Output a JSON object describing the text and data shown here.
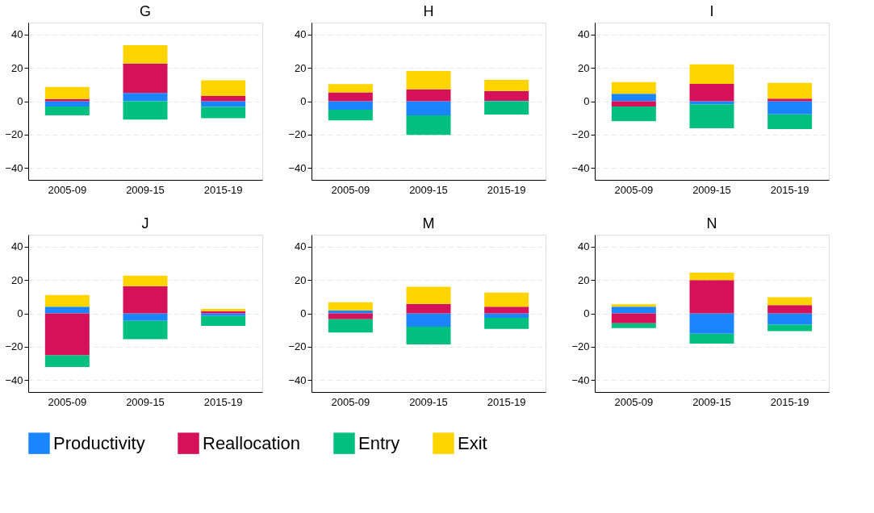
{
  "chart_data": [
    {
      "type": "bar",
      "title": "G",
      "categories": [
        "2005-09",
        "2009-15",
        "2015-19"
      ],
      "stacked": true,
      "ylim": [
        -47,
        47
      ],
      "yticks": [
        -40,
        -20,
        0,
        20,
        40
      ],
      "grid": "y",
      "legend": "bottom",
      "series": [
        {
          "name": "Productivity",
          "color": "#1a85ff",
          "values": [
            -3.1,
            4.9,
            -3.4
          ]
        },
        {
          "name": "Reallocation",
          "color": "#d41159",
          "values": [
            1.3,
            17.6,
            3.1
          ]
        },
        {
          "name": "Entry",
          "color": "#00bf7f",
          "values": [
            -5.3,
            -11.0,
            -6.7
          ]
        },
        {
          "name": "Exit",
          "color": "#ffd400",
          "values": [
            7.2,
            11.0,
            9.4
          ]
        }
      ]
    },
    {
      "type": "bar",
      "title": "H",
      "categories": [
        "2005-09",
        "2009-15",
        "2015-19"
      ],
      "stacked": true,
      "ylim": [
        -47,
        47
      ],
      "yticks": [
        -40,
        -20,
        0,
        20,
        40
      ],
      "grid": "y",
      "legend": "bottom",
      "series": [
        {
          "name": "Productivity",
          "color": "#1a85ff",
          "values": [
            -5.1,
            -8.4,
            0.3
          ]
        },
        {
          "name": "Reallocation",
          "color": "#d41159",
          "values": [
            5.3,
            7.1,
            5.9
          ]
        },
        {
          "name": "Entry",
          "color": "#00bf7f",
          "values": [
            -6.4,
            -11.7,
            -7.9
          ]
        },
        {
          "name": "Exit",
          "color": "#ffd400",
          "values": [
            5.0,
            11.0,
            6.6
          ]
        }
      ]
    },
    {
      "type": "bar",
      "title": "I",
      "categories": [
        "2005-09",
        "2009-15",
        "2015-19"
      ],
      "stacked": true,
      "ylim": [
        -47,
        47
      ],
      "yticks": [
        -40,
        -20,
        0,
        20,
        40
      ],
      "grid": "y",
      "legend": "bottom",
      "series": [
        {
          "name": "Productivity",
          "color": "#1a85ff",
          "values": [
            4.4,
            -1.8,
            -7.8
          ]
        },
        {
          "name": "Reallocation",
          "color": "#d41159",
          "values": [
            -3.1,
            10.4,
            1.6
          ]
        },
        {
          "name": "Entry",
          "color": "#00bf7f",
          "values": [
            -8.8,
            -14.4,
            -8.8
          ]
        },
        {
          "name": "Exit",
          "color": "#ffd400",
          "values": [
            7.1,
            11.7,
            9.4
          ]
        }
      ]
    },
    {
      "type": "bar",
      "title": "J",
      "categories": [
        "2005-09",
        "2009-15",
        "2015-19"
      ],
      "stacked": true,
      "ylim": [
        -47,
        47
      ],
      "yticks": [
        -40,
        -20,
        0,
        20,
        40
      ],
      "grid": "y",
      "legend": "bottom",
      "series": [
        {
          "name": "Productivity",
          "color": "#1a85ff",
          "values": [
            4.0,
            -4.4,
            -1.6
          ]
        },
        {
          "name": "Reallocation",
          "color": "#d41159",
          "values": [
            -25.1,
            16.3,
            1.3
          ]
        },
        {
          "name": "Entry",
          "color": "#00bf7f",
          "values": [
            -7.0,
            -11.0,
            -5.9
          ]
        },
        {
          "name": "Exit",
          "color": "#ffd400",
          "values": [
            7.0,
            6.2,
            1.3
          ]
        }
      ]
    },
    {
      "type": "bar",
      "title": "M",
      "categories": [
        "2005-09",
        "2009-15",
        "2015-19"
      ],
      "stacked": true,
      "ylim": [
        -47,
        47
      ],
      "yticks": [
        -40,
        -20,
        0,
        20,
        40
      ],
      "grid": "y",
      "legend": "bottom",
      "series": [
        {
          "name": "Productivity",
          "color": "#1a85ff",
          "values": [
            1.8,
            -7.9,
            -2.6
          ]
        },
        {
          "name": "Reallocation",
          "color": "#d41159",
          "values": [
            -3.5,
            5.7,
            4.0
          ]
        },
        {
          "name": "Entry",
          "color": "#00bf7f",
          "values": [
            -8.0,
            -10.6,
            -6.7
          ]
        },
        {
          "name": "Exit",
          "color": "#ffd400",
          "values": [
            4.8,
            10.2,
            8.4
          ]
        }
      ]
    },
    {
      "type": "bar",
      "title": "N",
      "categories": [
        "2005-09",
        "2009-15",
        "2015-19"
      ],
      "stacked": true,
      "ylim": [
        -47,
        47
      ],
      "yticks": [
        -40,
        -20,
        0,
        20,
        40
      ],
      "grid": "y",
      "legend": "bottom",
      "series": [
        {
          "name": "Productivity",
          "color": "#1a85ff",
          "values": [
            4.0,
            -12.2,
            -6.8
          ]
        },
        {
          "name": "Reallocation",
          "color": "#d41159",
          "values": [
            -5.9,
            19.9,
            4.9
          ]
        },
        {
          "name": "Entry",
          "color": "#00bf7f",
          "values": [
            -2.9,
            -5.9,
            -3.8
          ]
        },
        {
          "name": "Exit",
          "color": "#ffd400",
          "values": [
            1.4,
            4.4,
            4.8
          ]
        }
      ]
    }
  ]
}
